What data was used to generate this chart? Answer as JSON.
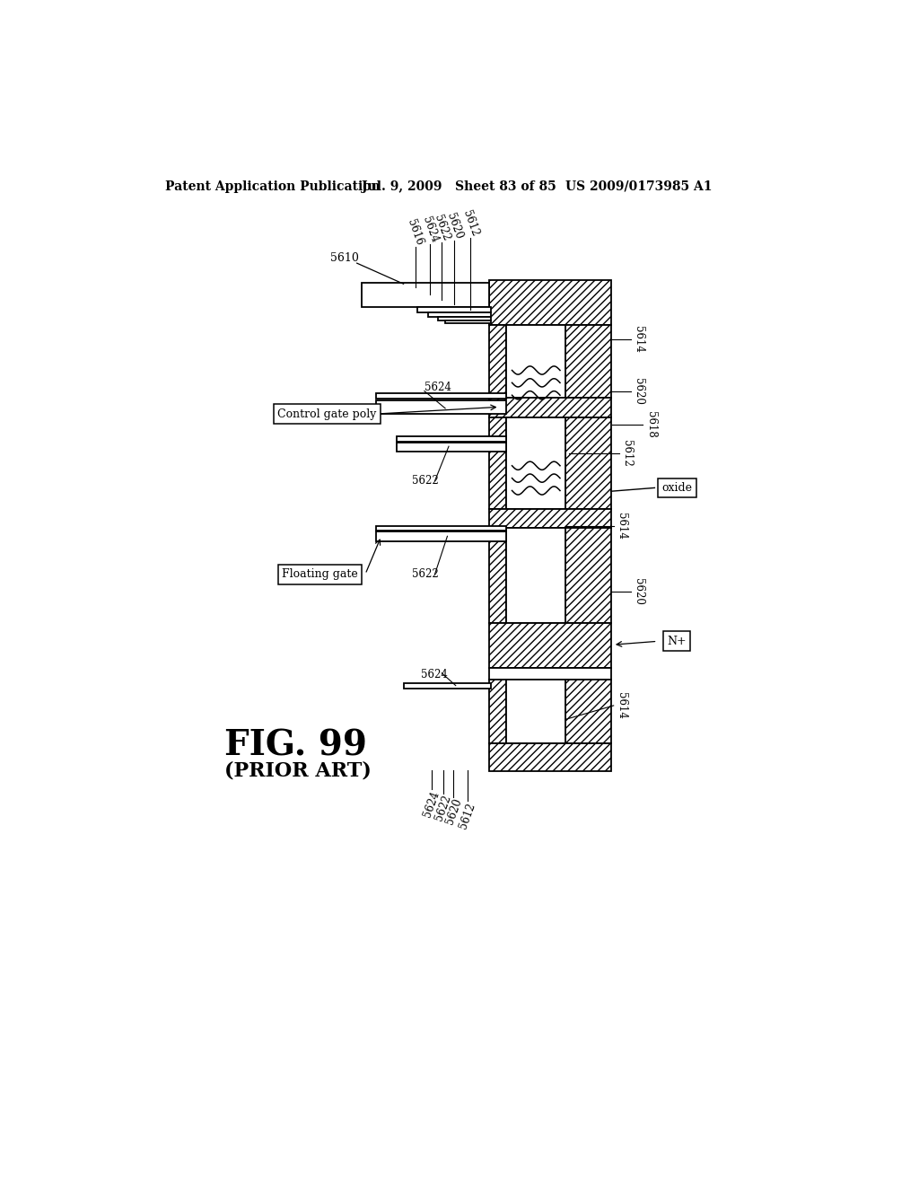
{
  "header_left": "Patent Application Publication",
  "header_mid": "Jul. 9, 2009   Sheet 83 of 85",
  "header_right": "US 2009/0173985 A1",
  "fig_label": "FIG. 99",
  "fig_sublabel": "(PRIOR ART)",
  "bg_color": "#ffffff"
}
